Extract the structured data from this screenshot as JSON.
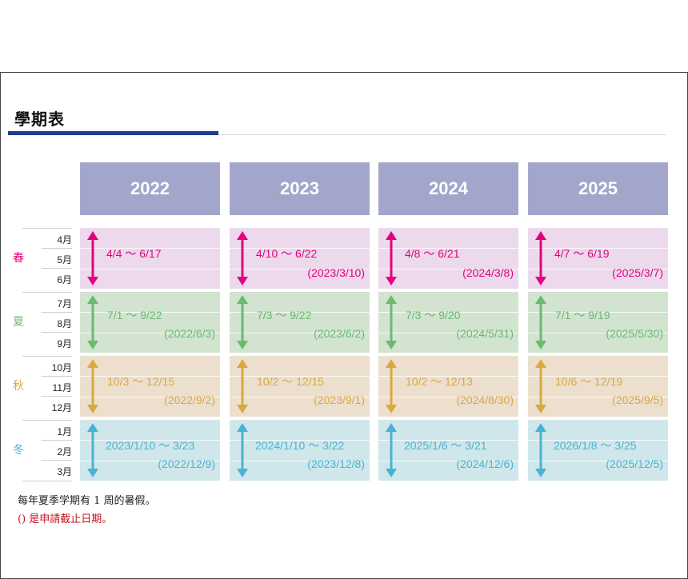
{
  "title": "學期表",
  "years": [
    "2022",
    "2023",
    "2024",
    "2025"
  ],
  "seasons": [
    {
      "label": "春",
      "color": "#e4007f",
      "bg": "#ecd9ec",
      "months": [
        "4月",
        "5月",
        "6月"
      ],
      "terms": [
        {
          "range": "4/4 ～ 6/17",
          "deadline": ""
        },
        {
          "range": "4/10 ～ 6/22",
          "deadline": "(2023/3/10)"
        },
        {
          "range": "4/8 ～ 6/21",
          "deadline": "(2024/3/8)"
        },
        {
          "range": "4/7 ～ 6/19",
          "deadline": "(2025/3/7)"
        }
      ]
    },
    {
      "label": "夏",
      "color": "#6aba6f",
      "bg": "#d2e3d0",
      "months": [
        "7月",
        "8月",
        "9月"
      ],
      "terms": [
        {
          "range": "7/1 ～ 9/22",
          "deadline": "(2022/6/3)"
        },
        {
          "range": "7/3 ～ 9/22",
          "deadline": "(2023/6/2)"
        },
        {
          "range": "7/3 ～ 9/20",
          "deadline": "(2024/5/31)"
        },
        {
          "range": "7/1 ～ 9/19",
          "deadline": "(2025/5/30)"
        }
      ]
    },
    {
      "label": "秋",
      "color": "#d9a93f",
      "bg": "#eddfcd",
      "months": [
        "10月",
        "11月",
        "12月"
      ],
      "terms": [
        {
          "range": "10/3 ～ 12/15",
          "deadline": "(2022/9/2)"
        },
        {
          "range": "10/2 ～ 12/15",
          "deadline": "(2023/9/1)"
        },
        {
          "range": "10/2 ～ 12/13",
          "deadline": "(2024/8/30)"
        },
        {
          "range": "10/6 ～ 12/19",
          "deadline": "(2025/9/5)"
        }
      ]
    },
    {
      "label": "冬",
      "color": "#49b3d3",
      "bg": "#cfe7ea",
      "months": [
        "1月",
        "2月",
        "3月"
      ],
      "terms": [
        {
          "range": "2023/1/10 ～ 3/23",
          "deadline": "(2022/12/9)"
        },
        {
          "range": "2024/1/10 ～ 3/22",
          "deadline": "(2023/12/8)"
        },
        {
          "range": "2025/1/6 ～ 3/21",
          "deadline": "(2024/12/6)"
        },
        {
          "range": "2026/1/8 ～ 3/25",
          "deadline": "(2025/12/5)"
        }
      ]
    }
  ],
  "notes": {
    "summer_break": "每年夏季学期有 1 周的暑假。",
    "deadline_note": "() 是申請截止日期。"
  },
  "colors": {
    "header_bg": "#a3a6cb",
    "title_bar": "#1f3b8f",
    "note_red": "#cc1122"
  }
}
